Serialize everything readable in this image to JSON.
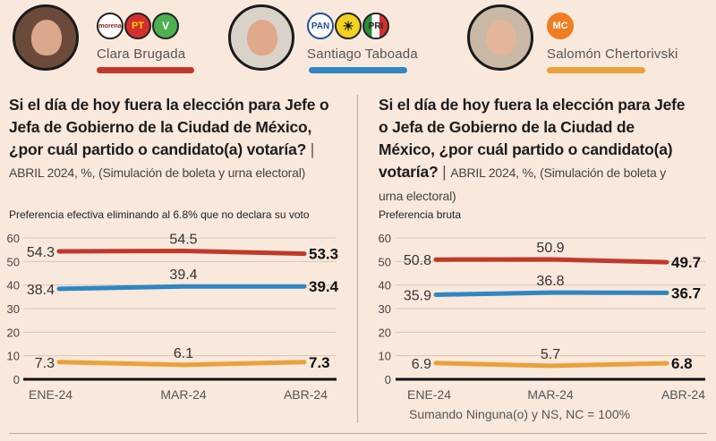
{
  "candidates": [
    {
      "name": "Clara Brugada",
      "color": "#c0392b",
      "parties": [
        "morena",
        "PT",
        "PVEM"
      ]
    },
    {
      "name": "Santiago Taboada",
      "color": "#2f86c1",
      "parties": [
        "PAN",
        "PRD",
        "PRI"
      ]
    },
    {
      "name": "Salomón Chertorivski",
      "color": "#e9a23b",
      "parties": [
        "MC"
      ]
    }
  ],
  "left": {
    "title": "Si el día de hoy fuera la elección para Jefe o Jefa de Gobierno de la Ciudad de México, ¿por cuál partido o candidato(a) votaría?",
    "pipe": "|",
    "subtitle": "ABRIL 2024, %, (Simulación de boleta y urna electoral)",
    "chart_label": "Preferencia efectiva eliminando al 6.8% que no declara su voto"
  },
  "right": {
    "title": "Si el día de hoy fuera la elección para Jefe o Jefa de Gobierno de la Ciudad de México, ¿por cuál partido o candidato(a) votaría?",
    "pipe": "|",
    "subtitle": "ABRIL 2024, %, (Simulación de boleta y urna electoral)",
    "chart_label": "Preferencia bruta",
    "footnote": "Sumando Ninguna(o) y NS, NC = 100%"
  },
  "chart_data": [
    {
      "type": "line",
      "title": "Preferencia efectiva eliminando al 6.8% que no declara su voto",
      "categories": [
        "ENE-24",
        "MAR-24",
        "ABR-24"
      ],
      "yticks": [
        0,
        10,
        20,
        30,
        40,
        50,
        60
      ],
      "ylim": [
        0,
        60
      ],
      "grid": true,
      "series": [
        {
          "name": "Clara Brugada",
          "color": "#c0392b",
          "values": [
            54.3,
            54.5,
            53.3
          ]
        },
        {
          "name": "Santiago Taboada",
          "color": "#2f86c1",
          "values": [
            38.4,
            39.4,
            39.4
          ]
        },
        {
          "name": "Salomón Chertorivski",
          "color": "#e9a23b",
          "values": [
            7.3,
            6.1,
            7.3
          ]
        }
      ]
    },
    {
      "type": "line",
      "title": "Preferencia bruta",
      "categories": [
        "ENE-24",
        "MAR-24",
        "ABR-24"
      ],
      "yticks": [
        0,
        10,
        20,
        30,
        40,
        50,
        60
      ],
      "ylim": [
        0,
        60
      ],
      "grid": true,
      "series": [
        {
          "name": "Clara Brugada",
          "color": "#c0392b",
          "values": [
            50.8,
            50.9,
            49.7
          ]
        },
        {
          "name": "Santiago Taboada",
          "color": "#2f86c1",
          "values": [
            35.9,
            36.8,
            36.7
          ]
        },
        {
          "name": "Salomón Chertorivski",
          "color": "#e9a23b",
          "values": [
            6.9,
            5.7,
            6.8
          ]
        }
      ]
    }
  ]
}
